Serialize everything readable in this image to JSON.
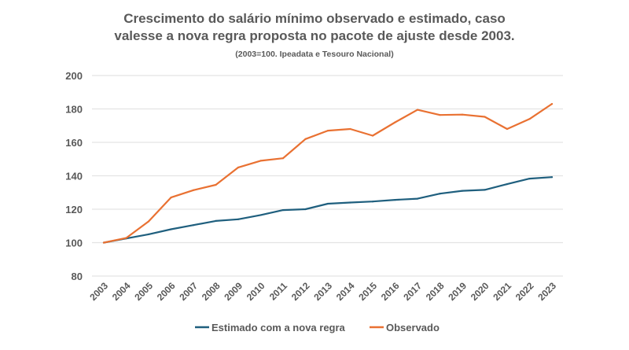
{
  "chart_data": {
    "type": "line",
    "title": "Crescimento do salário mínimo observado e estimado, caso",
    "title_line2": "valesse a nova regra proposta no pacote de ajuste desde 2003.",
    "subtitle": "(2003=100. Ipeadata e Tesouro Nacional)",
    "xlabel": "",
    "ylabel": "",
    "ylim": [
      80,
      200
    ],
    "yticks": [
      "80",
      "100",
      "120",
      "140",
      "160",
      "180",
      "200"
    ],
    "grid": true,
    "legend_position": "bottom",
    "categories": [
      "2003",
      "2004",
      "2005",
      "2006",
      "2007",
      "2008",
      "2009",
      "2010",
      "2011",
      "2012",
      "2013",
      "2014",
      "2015",
      "2016",
      "2017",
      "2018",
      "2019",
      "2020",
      "2021",
      "2022",
      "2023"
    ],
    "series": [
      {
        "name": "Estimado com a nova regra",
        "color": "#1F5F7E",
        "values": [
          100,
          102.5,
          105,
          108,
          110.5,
          113,
          114,
          116.5,
          119.5,
          120,
          123.3,
          124,
          124.6,
          125.6,
          126.3,
          129.3,
          131,
          131.6,
          135,
          138.3,
          139.2
        ]
      },
      {
        "name": "Observado",
        "color": "#E97132",
        "values": [
          100,
          102.8,
          112.7,
          127,
          131.4,
          134.6,
          145,
          149,
          150.5,
          162,
          167,
          168,
          164,
          172,
          179.5,
          176.4,
          176.6,
          175.3,
          168,
          174,
          183
        ]
      }
    ]
  }
}
